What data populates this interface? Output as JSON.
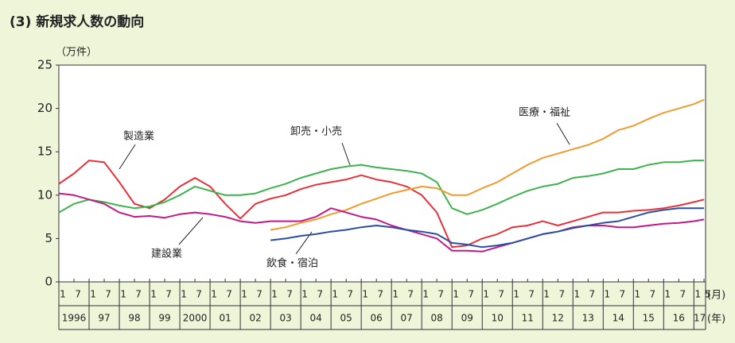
{
  "chart_data": {
    "type": "line",
    "title": "(3) 新規求人数の動向",
    "y_unit": "（万件）",
    "month_axis_label": "(月)",
    "year_axis_label": "(年)",
    "months": [
      "1",
      "7",
      "1",
      "7",
      "1",
      "7",
      "1",
      "7",
      "1",
      "7",
      "1",
      "7",
      "1",
      "7",
      "1",
      "7",
      "1",
      "7",
      "1",
      "7",
      "1",
      "7",
      "1",
      "7",
      "1",
      "7",
      "1",
      "7",
      "1",
      "7",
      "1",
      "7",
      "1",
      "7",
      "1",
      "7",
      "1",
      "7",
      "1",
      "7",
      "1",
      "7",
      "1",
      "5"
    ],
    "years": [
      "1996",
      "97",
      "98",
      "99",
      "2000",
      "01",
      "02",
      "03",
      "04",
      "05",
      "06",
      "07",
      "08",
      "09",
      "10",
      "11",
      "12",
      "13",
      "14",
      "15",
      "16",
      "17"
    ],
    "ylim": [
      0,
      25
    ],
    "yticks": [
      0,
      5,
      10,
      15,
      20,
      25
    ],
    "grid": false,
    "series": [
      {
        "name": "製造業",
        "color": "#e8303a",
        "values": [
          11.3,
          12.5,
          14.0,
          13.8,
          11.5,
          9.0,
          8.5,
          9.5,
          11.0,
          12.0,
          11.0,
          9.0,
          7.3,
          9.0,
          9.6,
          10.0,
          10.7,
          11.2,
          11.5,
          11.8,
          12.3,
          11.8,
          11.5,
          11.0,
          10.0,
          8.0,
          4.0,
          4.2,
          5.0,
          5.5,
          6.3,
          6.5,
          7.0,
          6.5,
          7.0,
          7.5,
          8.0,
          8.0,
          8.2,
          8.3,
          8.5,
          8.8,
          9.2,
          9.5
        ]
      },
      {
        "name": "卸売・小売",
        "color": "#3cb44b",
        "values": [
          8.0,
          9.0,
          9.5,
          9.2,
          8.8,
          8.5,
          8.7,
          9.2,
          10.0,
          11.0,
          10.5,
          10.0,
          10.0,
          10.2,
          10.8,
          11.3,
          12.0,
          12.5,
          13.0,
          13.3,
          13.5,
          13.2,
          13.0,
          12.8,
          12.5,
          11.5,
          8.5,
          7.8,
          8.3,
          9.0,
          9.8,
          10.5,
          11.0,
          11.3,
          12.0,
          12.2,
          12.5,
          13.0,
          13.0,
          13.5,
          13.8,
          13.8,
          14.0,
          14.0
        ]
      },
      {
        "name": "医療・福祉",
        "color": "#f39a2e",
        "values": [
          null,
          null,
          null,
          null,
          null,
          null,
          null,
          null,
          null,
          null,
          null,
          null,
          null,
          null,
          6.0,
          6.3,
          6.8,
          7.2,
          7.8,
          8.3,
          9.0,
          9.6,
          10.2,
          10.6,
          11.0,
          10.8,
          10.0,
          10.0,
          10.8,
          11.5,
          12.5,
          13.5,
          14.3,
          14.8,
          15.3,
          15.8,
          16.5,
          17.5,
          18.0,
          18.8,
          19.5,
          20.0,
          20.5,
          21.0
        ]
      },
      {
        "name": "建設業",
        "color": "#c2188a",
        "values": [
          10.2,
          10.0,
          9.5,
          9.0,
          8.0,
          7.5,
          7.6,
          7.4,
          7.8,
          8.0,
          7.8,
          7.5,
          7.0,
          6.8,
          7.0,
          7.0,
          7.0,
          7.5,
          8.5,
          8.0,
          7.5,
          7.2,
          6.5,
          6.0,
          5.5,
          5.0,
          3.6,
          3.6,
          3.5,
          4.0,
          4.5,
          5.0,
          5.5,
          5.8,
          6.3,
          6.5,
          6.5,
          6.3,
          6.3,
          6.5,
          6.7,
          6.8,
          7.0,
          7.2
        ]
      },
      {
        "name": "飲食・宿泊",
        "color": "#2a4ea0",
        "values": [
          null,
          null,
          null,
          null,
          null,
          null,
          null,
          null,
          null,
          null,
          null,
          null,
          null,
          null,
          4.8,
          5.0,
          5.3,
          5.5,
          5.8,
          6.0,
          6.3,
          6.5,
          6.3,
          6.0,
          5.8,
          5.5,
          4.5,
          4.3,
          4.0,
          4.2,
          4.5,
          5.0,
          5.5,
          5.8,
          6.2,
          6.5,
          6.8,
          7.0,
          7.5,
          8.0,
          8.3,
          8.5,
          8.5,
          8.5
        ]
      }
    ]
  }
}
